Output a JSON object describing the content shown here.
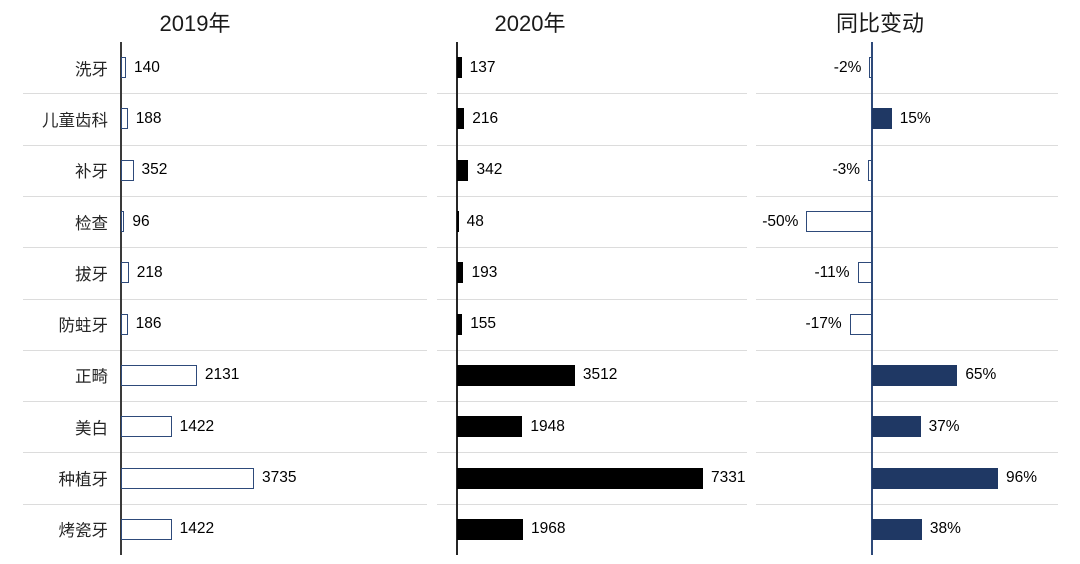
{
  "chart_data": {
    "type": "bar",
    "orientation": "horizontal",
    "legend": "none",
    "grid": "horizontal-row-separators",
    "categories": [
      "洗牙",
      "儿童齿科",
      "补牙",
      "检查",
      "拔牙",
      "防蛀牙",
      "正畸",
      "美白",
      "种植牙",
      "烤瓷牙"
    ],
    "panels": [
      {
        "title": "2019年",
        "bar_style": "white-with-navy-outline",
        "values": [
          140,
          188,
          352,
          96,
          218,
          186,
          2131,
          1422,
          3735,
          1422
        ],
        "labels": [
          "140",
          "188",
          "352",
          "96",
          "218",
          "186",
          "2131",
          "1422",
          "3735",
          "1422"
        ]
      },
      {
        "title": "2020年",
        "bar_style": "solid-black",
        "values": [
          137,
          216,
          342,
          48,
          193,
          155,
          3512,
          1948,
          7331,
          1968
        ],
        "labels": [
          "137",
          "216",
          "342",
          "48",
          "193",
          "155",
          "3512",
          "1948",
          "7331",
          "1968"
        ]
      },
      {
        "title": "同比变动",
        "bar_style": "navy-positive-outline-negative",
        "unit": "%",
        "values": [
          -2,
          15,
          -3,
          -50,
          -11,
          -17,
          65,
          37,
          96,
          38
        ],
        "labels": [
          "-2%",
          "15%",
          "-3%",
          "-50%",
          "-11%",
          "-17%",
          "65%",
          "37%",
          "96%",
          "38%"
        ]
      }
    ],
    "colors": {
      "navy_fill": "#1F3864",
      "bar_outline": "#2E4A7A",
      "black_fill": "#000000",
      "gridline": "#DCDCDC",
      "axis_dark": "#3A3A3A",
      "axis_navy": "#2E4A7A"
    }
  }
}
